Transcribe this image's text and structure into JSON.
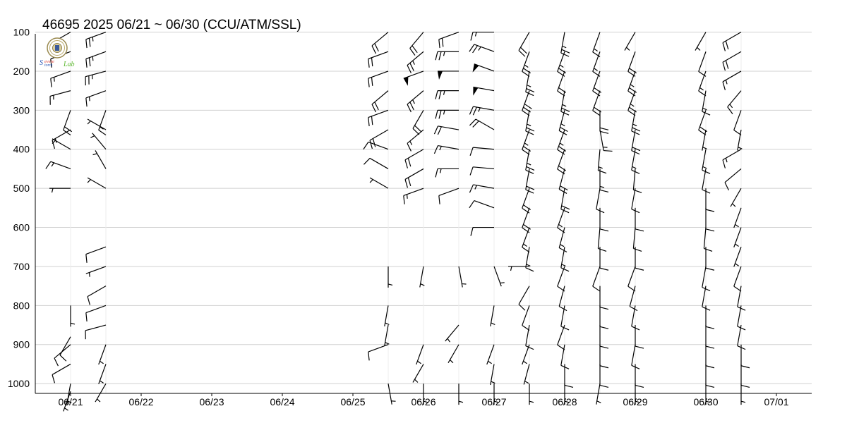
{
  "title": "46695  2025  06/21 ~ 06/30 (CCU/ATM/SSL)",
  "logo_text": "Severe Storm Lab",
  "colors": {
    "grid": "#d0d0d0",
    "axis": "#000000",
    "barb": "#000000",
    "logo_green": "#5cb82e",
    "logo_red": "#d9342b",
    "logo_blue": "#2a56b5"
  },
  "chart_data": {
    "type": "wind-barb",
    "title": "46695  2025  06/21 ~ 06/30 (CCU/ATM/SSL)",
    "ylabel": "",
    "xlabel": "",
    "y_inverted": true,
    "ylim": [
      1025,
      90
    ],
    "yticks": [
      100,
      200,
      300,
      400,
      500,
      600,
      700,
      800,
      900,
      1000
    ],
    "xlim": [
      -0.5,
      10.5
    ],
    "xtick_positions": [
      0,
      1,
      2,
      3,
      4,
      5,
      6,
      7,
      8,
      9,
      10
    ],
    "xtick_labels": [
      "06/21",
      "06/22",
      "06/23",
      "06/24",
      "06/25",
      "06/26",
      "06/27",
      "06/28",
      "06/29",
      "06/30",
      "07/01"
    ],
    "grid": true,
    "soundings": [
      {
        "time": 0.0,
        "barbs": [
          [
            100,
            240,
            15
          ],
          [
            150,
            250,
            10
          ],
          [
            200,
            250,
            15
          ],
          [
            250,
            255,
            15
          ],
          [
            300,
            200,
            20
          ],
          [
            350,
            240,
            15
          ],
          [
            400,
            300,
            5
          ],
          [
            450,
            290,
            15
          ],
          [
            500,
            270,
            5
          ],
          [
            800,
            180,
            5
          ],
          [
            880,
            210,
            10
          ],
          [
            900,
            230,
            10
          ],
          [
            950,
            240,
            10
          ],
          [
            1000,
            190,
            5
          ],
          [
            1020,
            200,
            5
          ]
        ]
      },
      {
        "time": 0.5,
        "barbs": [
          [
            100,
            250,
            25
          ],
          [
            150,
            250,
            25
          ],
          [
            200,
            255,
            25
          ],
          [
            250,
            250,
            15
          ],
          [
            300,
            200,
            15
          ],
          [
            350,
            300,
            5
          ],
          [
            400,
            320,
            5
          ],
          [
            450,
            330,
            5
          ],
          [
            500,
            300,
            5
          ],
          [
            650,
            250,
            10
          ],
          [
            700,
            250,
            5
          ],
          [
            750,
            240,
            10
          ],
          [
            800,
            250,
            10
          ],
          [
            850,
            255,
            10
          ],
          [
            900,
            200,
            5
          ],
          [
            950,
            200,
            5
          ],
          [
            1000,
            210,
            5
          ]
        ]
      },
      {
        "time": 4.5,
        "barbs": [
          [
            100,
            230,
            20
          ],
          [
            150,
            250,
            20
          ],
          [
            200,
            250,
            20
          ],
          [
            250,
            230,
            20
          ],
          [
            300,
            250,
            20
          ],
          [
            350,
            240,
            20
          ],
          [
            400,
            290,
            10
          ],
          [
            450,
            300,
            10
          ],
          [
            500,
            300,
            5
          ],
          [
            700,
            180,
            5
          ],
          [
            800,
            190,
            5
          ],
          [
            850,
            190,
            5
          ],
          [
            900,
            250,
            10
          ],
          [
            1000,
            170,
            5
          ]
        ]
      },
      {
        "time": 5.0,
        "barbs": [
          [
            100,
            220,
            20
          ],
          [
            150,
            230,
            25
          ],
          [
            200,
            250,
            50
          ],
          [
            250,
            230,
            25
          ],
          [
            300,
            210,
            20
          ],
          [
            350,
            230,
            15
          ],
          [
            400,
            240,
            20
          ],
          [
            450,
            240,
            20
          ],
          [
            500,
            250,
            15
          ],
          [
            700,
            190,
            5
          ],
          [
            900,
            200,
            5
          ],
          [
            950,
            210,
            5
          ],
          [
            1000,
            180,
            5
          ]
        ]
      },
      {
        "time": 5.5,
        "barbs": [
          [
            100,
            250,
            20
          ],
          [
            150,
            270,
            25
          ],
          [
            200,
            270,
            50
          ],
          [
            250,
            270,
            25
          ],
          [
            300,
            270,
            25
          ],
          [
            350,
            280,
            20
          ],
          [
            400,
            280,
            15
          ],
          [
            450,
            270,
            15
          ],
          [
            500,
            250,
            10
          ],
          [
            700,
            170,
            5
          ],
          [
            850,
            220,
            5
          ],
          [
            900,
            210,
            5
          ],
          [
            1000,
            180,
            5
          ]
        ]
      },
      {
        "time": 6.0,
        "barbs": [
          [
            100,
            270,
            15
          ],
          [
            150,
            290,
            25
          ],
          [
            200,
            290,
            50
          ],
          [
            250,
            280,
            50
          ],
          [
            300,
            280,
            25
          ],
          [
            350,
            300,
            20
          ],
          [
            400,
            275,
            10
          ],
          [
            450,
            275,
            10
          ],
          [
            500,
            280,
            15
          ],
          [
            550,
            290,
            10
          ],
          [
            600,
            270,
            10
          ],
          [
            700,
            160,
            5
          ],
          [
            800,
            190,
            5
          ],
          [
            900,
            200,
            5
          ],
          [
            950,
            190,
            5
          ],
          [
            1000,
            180,
            5
          ]
        ]
      },
      {
        "time": 6.5,
        "barbs": [
          [
            100,
            210,
            20
          ],
          [
            150,
            200,
            25
          ],
          [
            200,
            190,
            25
          ],
          [
            250,
            200,
            30
          ],
          [
            300,
            190,
            25
          ],
          [
            350,
            200,
            25
          ],
          [
            400,
            190,
            25
          ],
          [
            450,
            190,
            20
          ],
          [
            500,
            200,
            20
          ],
          [
            550,
            200,
            20
          ],
          [
            600,
            200,
            15
          ],
          [
            650,
            190,
            15
          ],
          [
            700,
            270,
            5
          ],
          [
            750,
            210,
            10
          ],
          [
            800,
            200,
            10
          ],
          [
            850,
            190,
            10
          ],
          [
            900,
            200,
            5
          ],
          [
            950,
            195,
            5
          ],
          [
            1000,
            180,
            5
          ]
        ]
      },
      {
        "time": 7.0,
        "barbs": [
          [
            100,
            190,
            25
          ],
          [
            150,
            200,
            25
          ],
          [
            200,
            200,
            20
          ],
          [
            250,
            190,
            25
          ],
          [
            300,
            195,
            25
          ],
          [
            350,
            200,
            25
          ],
          [
            400,
            200,
            20
          ],
          [
            450,
            195,
            20
          ],
          [
            500,
            190,
            20
          ],
          [
            550,
            200,
            15
          ],
          [
            600,
            195,
            15
          ],
          [
            650,
            190,
            15
          ],
          [
            700,
            200,
            10
          ],
          [
            750,
            195,
            10
          ],
          [
            800,
            190,
            10
          ],
          [
            850,
            200,
            10
          ],
          [
            900,
            190,
            10
          ],
          [
            950,
            180,
            10
          ],
          [
            1000,
            180,
            5
          ]
        ]
      },
      {
        "time": 7.5,
        "barbs": [
          [
            100,
            200,
            15
          ],
          [
            150,
            200,
            15
          ],
          [
            200,
            200,
            20
          ],
          [
            250,
            200,
            20
          ],
          [
            300,
            180,
            20
          ],
          [
            350,
            170,
            15
          ],
          [
            400,
            185,
            15
          ],
          [
            450,
            180,
            15
          ],
          [
            500,
            190,
            10
          ],
          [
            550,
            180,
            10
          ],
          [
            600,
            185,
            10
          ],
          [
            650,
            180,
            10
          ],
          [
            700,
            200,
            10
          ],
          [
            750,
            180,
            10
          ],
          [
            800,
            180,
            10
          ],
          [
            850,
            180,
            10
          ],
          [
            900,
            180,
            10
          ],
          [
            950,
            180,
            10
          ],
          [
            1000,
            190,
            5
          ]
        ]
      },
      {
        "time": 8.0,
        "barbs": [
          [
            100,
            210,
            5
          ],
          [
            150,
            200,
            20
          ],
          [
            200,
            200,
            25
          ],
          [
            250,
            200,
            25
          ],
          [
            300,
            190,
            25
          ],
          [
            350,
            190,
            20
          ],
          [
            400,
            190,
            15
          ],
          [
            450,
            185,
            10
          ],
          [
            500,
            190,
            10
          ],
          [
            550,
            180,
            10
          ],
          [
            600,
            185,
            10
          ],
          [
            650,
            180,
            10
          ],
          [
            700,
            200,
            10
          ],
          [
            750,
            195,
            10
          ],
          [
            800,
            190,
            10
          ],
          [
            850,
            180,
            10
          ],
          [
            900,
            190,
            10
          ],
          [
            950,
            180,
            10
          ],
          [
            1000,
            180,
            5
          ]
        ]
      },
      {
        "time": 9.0,
        "barbs": [
          [
            100,
            210,
            5
          ],
          [
            150,
            200,
            10
          ],
          [
            200,
            200,
            15
          ],
          [
            250,
            190,
            15
          ],
          [
            300,
            200,
            20
          ],
          [
            350,
            190,
            5
          ],
          [
            400,
            190,
            15
          ],
          [
            450,
            190,
            10
          ],
          [
            500,
            180,
            10
          ],
          [
            550,
            180,
            10
          ],
          [
            600,
            185,
            10
          ],
          [
            650,
            180,
            10
          ],
          [
            700,
            190,
            10
          ],
          [
            750,
            190,
            10
          ],
          [
            800,
            180,
            10
          ],
          [
            850,
            180,
            10
          ],
          [
            900,
            180,
            10
          ],
          [
            950,
            180,
            10
          ],
          [
            1000,
            180,
            5
          ]
        ]
      },
      {
        "time": 9.5,
        "barbs": [
          [
            100,
            240,
            20
          ],
          [
            150,
            240,
            20
          ],
          [
            200,
            240,
            15
          ],
          [
            250,
            220,
            15
          ],
          [
            300,
            200,
            10
          ],
          [
            350,
            190,
            5
          ],
          [
            400,
            240,
            15
          ],
          [
            450,
            230,
            10
          ],
          [
            500,
            210,
            5
          ],
          [
            550,
            200,
            5
          ],
          [
            600,
            200,
            5
          ],
          [
            650,
            200,
            5
          ],
          [
            700,
            200,
            10
          ],
          [
            750,
            190,
            10
          ],
          [
            800,
            190,
            10
          ],
          [
            850,
            190,
            10
          ],
          [
            900,
            180,
            10
          ],
          [
            950,
            180,
            10
          ],
          [
            1000,
            180,
            5
          ]
        ]
      }
    ]
  }
}
